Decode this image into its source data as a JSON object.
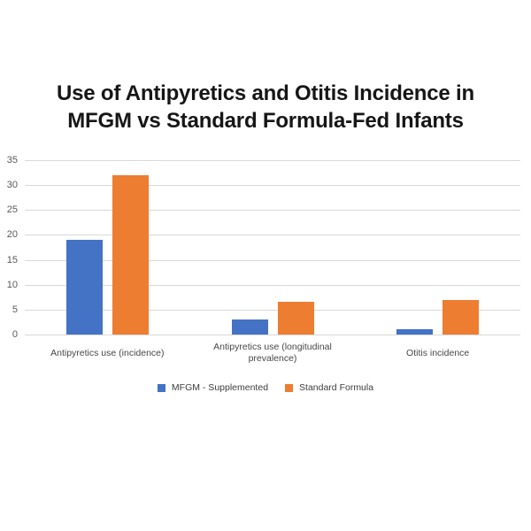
{
  "slide": {
    "title_line1": "Use of Antipyretics and Otitis Incidence in",
    "title_line2": "MFGM vs Standard Formula-Fed Infants"
  },
  "chart_data": {
    "type": "bar",
    "title": "Use of Antipyretics and Otitis Incidence in MFGM vs Standard Formula-Fed Infants",
    "categories": [
      "Antipyretics use (incidence)",
      "Antipyretics use (longitudinal prevalence)",
      "Otitis incidence"
    ],
    "series": [
      {
        "name": "MFGM - Supplemented",
        "color": "#4472C4",
        "values": [
          19,
          3,
          1
        ]
      },
      {
        "name": "Standard Formula",
        "color": "#ED7D31",
        "values": [
          32,
          6.5,
          7
        ]
      }
    ],
    "xlabel": "",
    "ylabel": "",
    "ylim": [
      0,
      35
    ],
    "yticks": [
      35,
      30,
      25,
      20,
      15,
      10,
      5,
      0
    ],
    "grid": true,
    "legend_position": "bottom",
    "colors": {
      "grid_line": "#D8D8D8",
      "axis_text": "#595959",
      "category_text": "#474747",
      "legend_text": "#3D3D3D",
      "title_text": "#161616",
      "background": "#FFFFFF"
    }
  }
}
